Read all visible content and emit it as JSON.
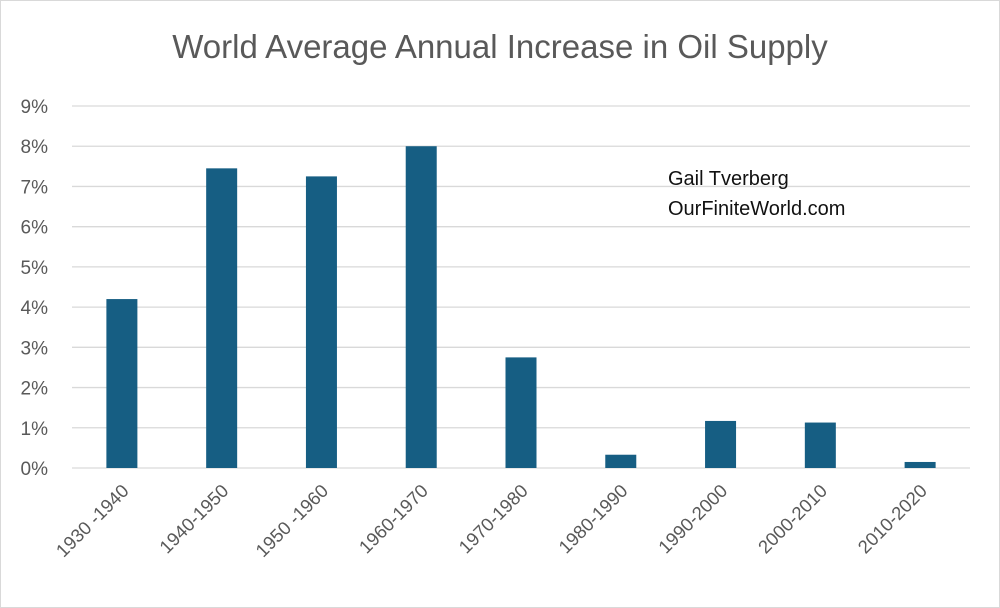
{
  "chart_data": {
    "type": "bar",
    "title": "World Average Annual Increase in Oil Supply",
    "categories": [
      "1930 -1940",
      "1940-1950",
      "1950 -1960",
      "1960-1970",
      "1970-1980",
      "1980-1990",
      "1990-2000",
      "2000-2010",
      "2010-2020"
    ],
    "values": [
      4.2,
      7.45,
      7.25,
      8.0,
      2.75,
      0.33,
      1.17,
      1.13,
      0.15
    ],
    "y_ticks": [
      "0%",
      "1%",
      "2%",
      "3%",
      "4%",
      "5%",
      "6%",
      "7%",
      "8%",
      "9%"
    ],
    "ylim": [
      0,
      9
    ],
    "grid": true,
    "colors": {
      "bar": "#165E83",
      "grid": "#d9d9d9",
      "text": "#595959"
    },
    "annotations": [
      "Gail Tverberg",
      "OurFiniteWorld.com"
    ]
  }
}
